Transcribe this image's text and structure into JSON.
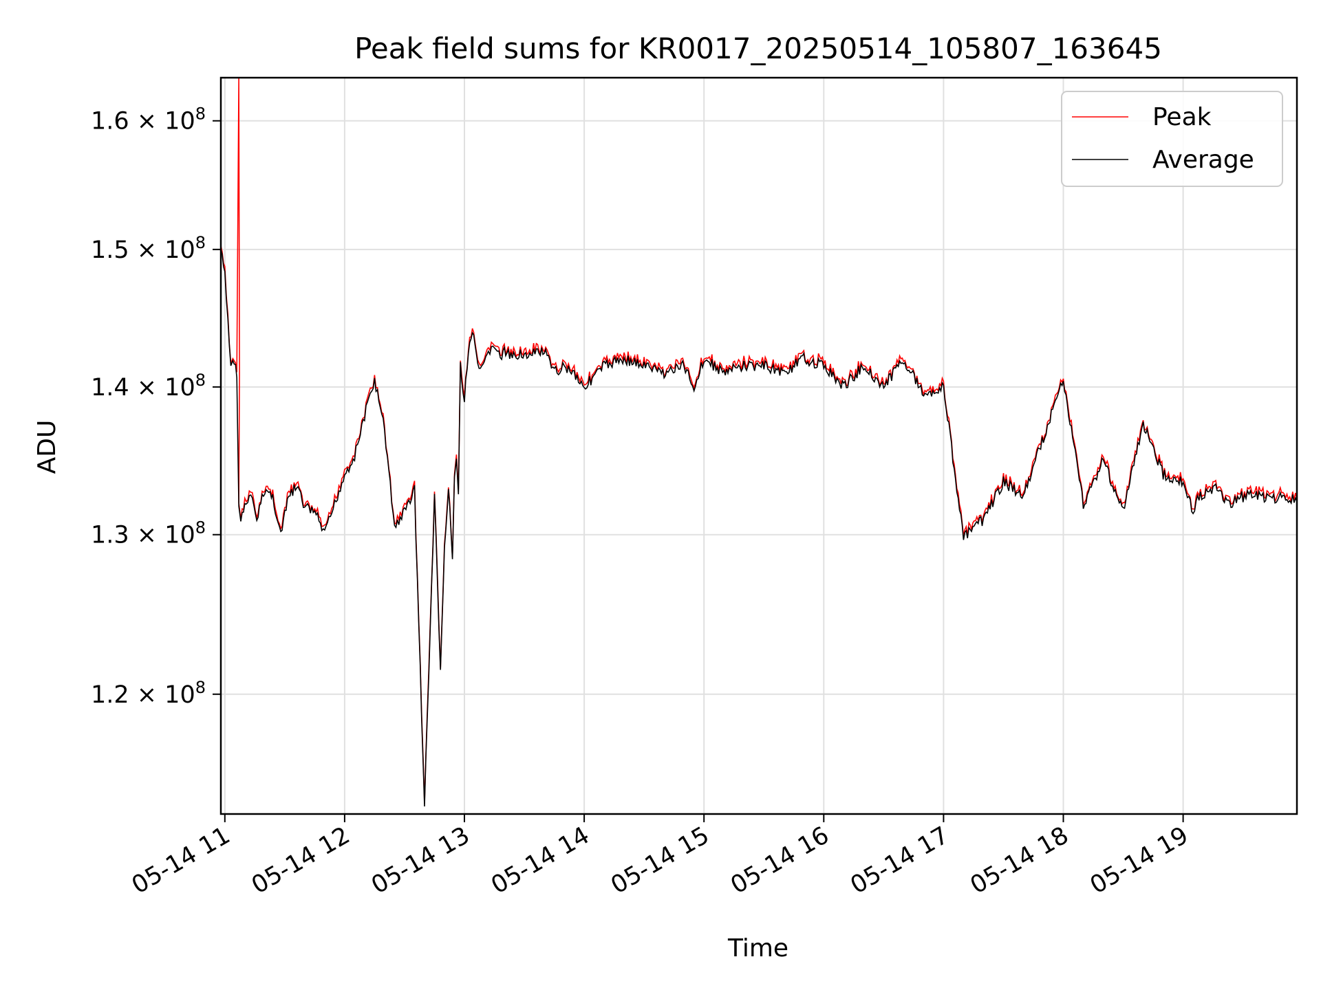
{
  "chart_data": {
    "type": "line",
    "title": "Peak field sums for KR0017_20250514_105807_163645",
    "xlabel": "Time",
    "ylabel": "ADU",
    "yscale": "log",
    "grid": true,
    "legend_position": "top-right",
    "xlim": [
      "05-14 10:58",
      "05-14 19:57"
    ],
    "ylim": [
      113000000,
      163500000
    ],
    "x_ticks": [
      "05-14 11",
      "05-14 12",
      "05-14 13",
      "05-14 14",
      "05-14 15",
      "05-14 16",
      "05-14 17",
      "05-14 18",
      "05-14 19"
    ],
    "y_ticks": [
      {
        "value": 120000000,
        "mantissa": "1.2",
        "exponent": "8"
      },
      {
        "value": 130000000,
        "mantissa": "1.3",
        "exponent": "8"
      },
      {
        "value": 140000000,
        "mantissa": "1.4",
        "exponent": "8"
      },
      {
        "value": 150000000,
        "mantissa": "1.5",
        "exponent": "8"
      },
      {
        "value": 160000000,
        "mantissa": "1.6",
        "exponent": "8"
      }
    ],
    "series": [
      {
        "name": "Peak",
        "color": "#ff0000",
        "spike": {
          "time": "05-14 11:07",
          "value": 163500000
        }
      },
      {
        "name": "Average",
        "color": "#000000"
      }
    ],
    "x": [
      "05-14 10:58",
      "05-14 11:00",
      "05-14 11:03",
      "05-14 11:04",
      "05-14 11:06",
      "05-14 11:07",
      "05-14 11:08",
      "05-14 11:10",
      "05-14 11:13",
      "05-14 11:16",
      "05-14 11:20",
      "05-14 11:24",
      "05-14 11:28",
      "05-14 11:32",
      "05-14 11:36",
      "05-14 11:40",
      "05-14 11:45",
      "05-14 11:50",
      "05-14 11:55",
      "05-14 12:00",
      "05-14 12:05",
      "05-14 12:10",
      "05-14 12:15",
      "05-14 12:20",
      "05-14 12:25",
      "05-14 12:30",
      "05-14 12:35",
      "05-14 12:40",
      "05-14 12:45",
      "05-14 12:48",
      "05-14 12:50",
      "05-14 12:52",
      "05-14 12:54",
      "05-14 12:55",
      "05-14 12:56",
      "05-14 12:57",
      "05-14 12:58",
      "05-14 13:00",
      "05-14 13:02",
      "05-14 13:04",
      "05-14 13:06",
      "05-14 13:08",
      "05-14 13:10",
      "05-14 13:12",
      "05-14 13:15",
      "05-14 13:18",
      "05-14 13:20",
      "05-14 13:24",
      "05-14 13:28",
      "05-14 13:32",
      "05-14 13:36",
      "05-14 13:40",
      "05-14 13:45",
      "05-14 13:50",
      "05-14 13:55",
      "05-14 14:00",
      "05-14 14:10",
      "05-14 14:20",
      "05-14 14:30",
      "05-14 14:40",
      "05-14 14:50",
      "05-14 14:55",
      "05-14 15:00",
      "05-14 15:10",
      "05-14 15:20",
      "05-14 15:30",
      "05-14 15:40",
      "05-14 15:50",
      "05-14 16:00",
      "05-14 16:10",
      "05-14 16:20",
      "05-14 16:30",
      "05-14 16:40",
      "05-14 16:50",
      "05-14 17:00",
      "05-14 17:10",
      "05-14 17:20",
      "05-14 17:30",
      "05-14 17:40",
      "05-14 17:50",
      "05-14 18:00",
      "05-14 18:10",
      "05-14 18:20",
      "05-14 18:30",
      "05-14 18:40",
      "05-14 18:50",
      "05-14 19:00",
      "05-14 19:05",
      "05-14 19:08",
      "05-14 19:10",
      "05-14 19:13",
      "05-14 19:17",
      "05-14 19:20",
      "05-14 19:24",
      "05-14 19:28",
      "05-14 19:30",
      "05-14 19:33",
      "05-14 19:36",
      "05-14 19:40",
      "05-14 19:44",
      "05-14 19:48",
      "05-14 19:52",
      "05-14 19:57"
    ],
    "y": [
      150000000,
      148000000,
      141500000,
      142000000,
      141000000,
      131600000,
      131200000,
      131800000,
      132500000,
      131000000,
      133000000,
      132500000,
      130000000,
      132500000,
      133200000,
      131800000,
      131500000,
      130000000,
      132000000,
      134000000,
      135200000,
      138000000,
      140500000,
      137000000,
      130500000,
      131500000,
      133000000,
      113500000,
      132500000,
      121500000,
      129000000,
      133000000,
      128500000,
      133500000,
      135000000,
      133000000,
      141500000,
      139000000,
      142500000,
      144000000,
      142000000,
      141000000,
      141500000,
      142500000,
      143000000,
      142000000,
      142500000,
      142000000,
      142500000,
      142000000,
      142500000,
      142500000,
      141000000,
      141500000,
      141000000,
      140000000,
      141500000,
      142000000,
      141500000,
      141000000,
      141500000,
      140000000,
      142000000,
      141000000,
      141500000,
      141500000,
      141000000,
      142000000,
      141500000,
      140000000,
      141500000,
      140000000,
      142000000,
      139500000,
      140000000,
      129800000,
      131000000,
      133500000,
      132500000,
      136500000,
      140500000,
      132000000,
      135000000,
      131500000,
      137500000,
      134000000,
      133500000,
      131500000,
      132500000,
      132500000,
      133000000,
      133000000,
      132500000,
      132000000,
      132500000,
      132500000,
      132800000,
      132600000,
      132500000,
      132300000,
      132500000,
      132400000,
      132200000
    ]
  }
}
